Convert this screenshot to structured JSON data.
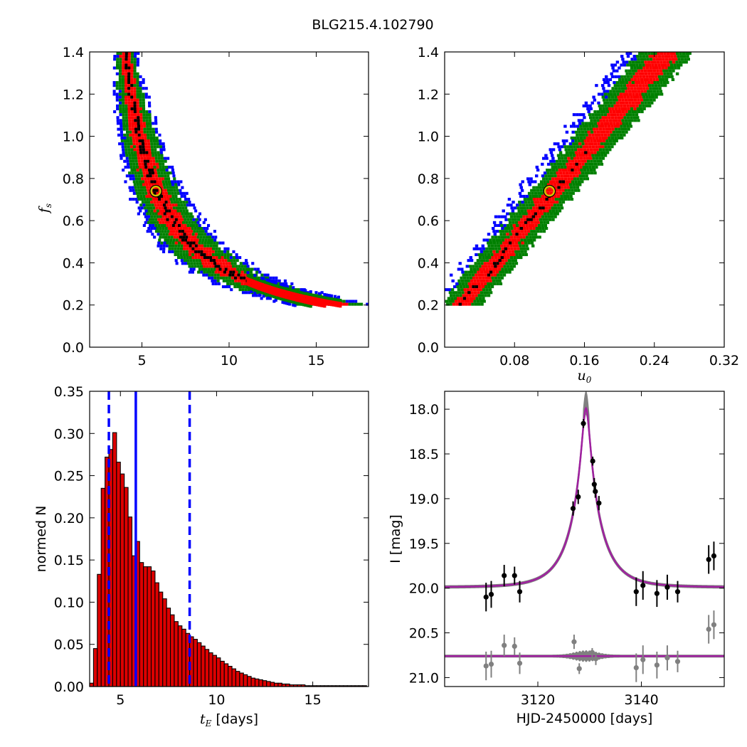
{
  "figure_title": "BLG215.4.102790",
  "colors": {
    "sigma1": "#ff0000",
    "sigma2": "#008000",
    "sigma3": "#0000ff",
    "best": "#000000",
    "marker_edge": "#d4c400",
    "model": "#a020a0",
    "band": "#808080",
    "bar": "#dd0000",
    "vline": "#0000ff"
  },
  "chart_data": [
    {
      "type": "heatmap",
      "panel": "top-left",
      "xlabel": "",
      "ylabel": "f_s",
      "xlim": [
        2,
        18
      ],
      "ylim": [
        0,
        1.4
      ],
      "xticks": [
        "5",
        "10",
        "15"
      ],
      "yticks": [
        "0.0",
        "0.2",
        "0.4",
        "0.6",
        "0.8",
        "1.0",
        "1.2",
        "1.4"
      ],
      "marker": {
        "x": 5.8,
        "y": 0.74
      },
      "bands": {
        "formula": "fs = A / (tE - B)",
        "A": 2.9,
        "B": 1.9,
        "tE_range": [
          3.5,
          16.3
        ]
      }
    },
    {
      "type": "heatmap",
      "panel": "top-right",
      "xlabel": "u_0",
      "ylabel": "",
      "xlim": [
        0,
        0.32
      ],
      "ylim": [
        0,
        1.4
      ],
      "xticks": [
        "0.08",
        "0.16",
        "0.24",
        "0.32"
      ],
      "yticks": [
        "0.0",
        "0.2",
        "0.4",
        "0.6",
        "0.8",
        "1.0",
        "1.2",
        "1.4"
      ],
      "marker": {
        "x": 0.12,
        "y": 0.74
      },
      "bands": {
        "formula": "fs = 0.22 + (1.4-0.22) * u0 / 0.25",
        "u0_range": [
          0.0,
          0.29
        ]
      }
    },
    {
      "type": "bar",
      "panel": "bottom-left",
      "xlabel": "t_E  [days]",
      "ylabel": "normed N",
      "xlim": [
        3.4,
        17.9
      ],
      "ylim": [
        0,
        0.35
      ],
      "xticks": [
        "5",
        "10",
        "15"
      ],
      "yticks": [
        "0.00",
        "0.05",
        "0.10",
        "0.15",
        "0.20",
        "0.25",
        "0.30",
        "0.35"
      ],
      "bin_start": 3.4,
      "bin_width": 0.2,
      "values": [
        0.004,
        0.045,
        0.133,
        0.235,
        0.272,
        0.281,
        0.301,
        0.266,
        0.252,
        0.236,
        0.201,
        0.155,
        0.172,
        0.147,
        0.142,
        0.142,
        0.137,
        0.123,
        0.112,
        0.104,
        0.093,
        0.085,
        0.077,
        0.072,
        0.068,
        0.063,
        0.059,
        0.056,
        0.052,
        0.048,
        0.044,
        0.04,
        0.037,
        0.034,
        0.03,
        0.027,
        0.024,
        0.021,
        0.018,
        0.016,
        0.014,
        0.012,
        0.01,
        0.009,
        0.008,
        0.007,
        0.006,
        0.005,
        0.004,
        0.004,
        0.003,
        0.003,
        0.002,
        0.002,
        0.002,
        0.002,
        0.001,
        0.001,
        0.001,
        0.001,
        0.001,
        0.001,
        0.001,
        0.001,
        0.001,
        0.001,
        0.001,
        0.001,
        0.001,
        0.001,
        0.001,
        0.001
      ],
      "median": 5.8,
      "interval": [
        4.4,
        8.6
      ]
    },
    {
      "type": "scatter",
      "panel": "bottom-right",
      "xlabel": "HJD-2450000 [days]",
      "ylabel": "I [mag]",
      "xlim": [
        3102,
        3156
      ],
      "ylim": [
        21.1,
        17.8
      ],
      "xticks": [
        "3120",
        "3140"
      ],
      "yticks": [
        "18.0",
        "18.5",
        "19.0",
        "19.5",
        "20.0",
        "20.5",
        "21.0"
      ],
      "model": {
        "t0": 3129.3,
        "baseline": 19.99,
        "peak": 17.99,
        "tE": 5.8,
        "u0": 0.12,
        "residual_baseline": 20.76
      },
      "series": [
        {
          "color": "black",
          "points": [
            [
              3110.0,
              20.1,
              0.16
            ],
            [
              3111.0,
              20.07,
              0.15
            ],
            [
              3113.5,
              19.86,
              0.12
            ],
            [
              3115.5,
              19.86,
              0.1
            ],
            [
              3116.5,
              20.04,
              0.12
            ],
            [
              3126.8,
              19.11,
              0.08
            ],
            [
              3127.8,
              18.98,
              0.08
            ],
            [
              3128.8,
              18.16,
              0.05
            ],
            [
              3130.6,
              18.58,
              0.05
            ],
            [
              3130.9,
              18.84,
              0.07
            ],
            [
              3131.1,
              18.92,
              0.07
            ],
            [
              3131.8,
              19.05,
              0.08
            ],
            [
              3139.0,
              20.04,
              0.16
            ],
            [
              3140.3,
              19.97,
              0.16
            ],
            [
              3143.0,
              20.06,
              0.15
            ],
            [
              3145.0,
              19.99,
              0.14
            ],
            [
              3147.0,
              20.04,
              0.12
            ],
            [
              3153.0,
              19.68,
              0.16
            ],
            [
              3154.0,
              19.64,
              0.16
            ]
          ]
        },
        {
          "color": "grey",
          "points": [
            [
              3110.0,
              20.87,
              0.16
            ],
            [
              3111.0,
              20.85,
              0.15
            ],
            [
              3113.5,
              20.64,
              0.12
            ],
            [
              3115.5,
              20.65,
              0.1
            ],
            [
              3116.5,
              20.84,
              0.12
            ],
            [
              3127.0,
              20.6,
              0.08
            ],
            [
              3128.0,
              20.9,
              0.06
            ],
            [
              3130.5,
              20.72,
              0.05
            ],
            [
              3131.2,
              20.79,
              0.07
            ],
            [
              3139.0,
              20.89,
              0.16
            ],
            [
              3140.3,
              20.8,
              0.16
            ],
            [
              3143.0,
              20.86,
              0.15
            ],
            [
              3145.0,
              20.78,
              0.14
            ],
            [
              3147.0,
              20.82,
              0.12
            ],
            [
              3153.0,
              20.46,
              0.16
            ],
            [
              3154.0,
              20.41,
              0.16
            ]
          ]
        }
      ]
    }
  ]
}
